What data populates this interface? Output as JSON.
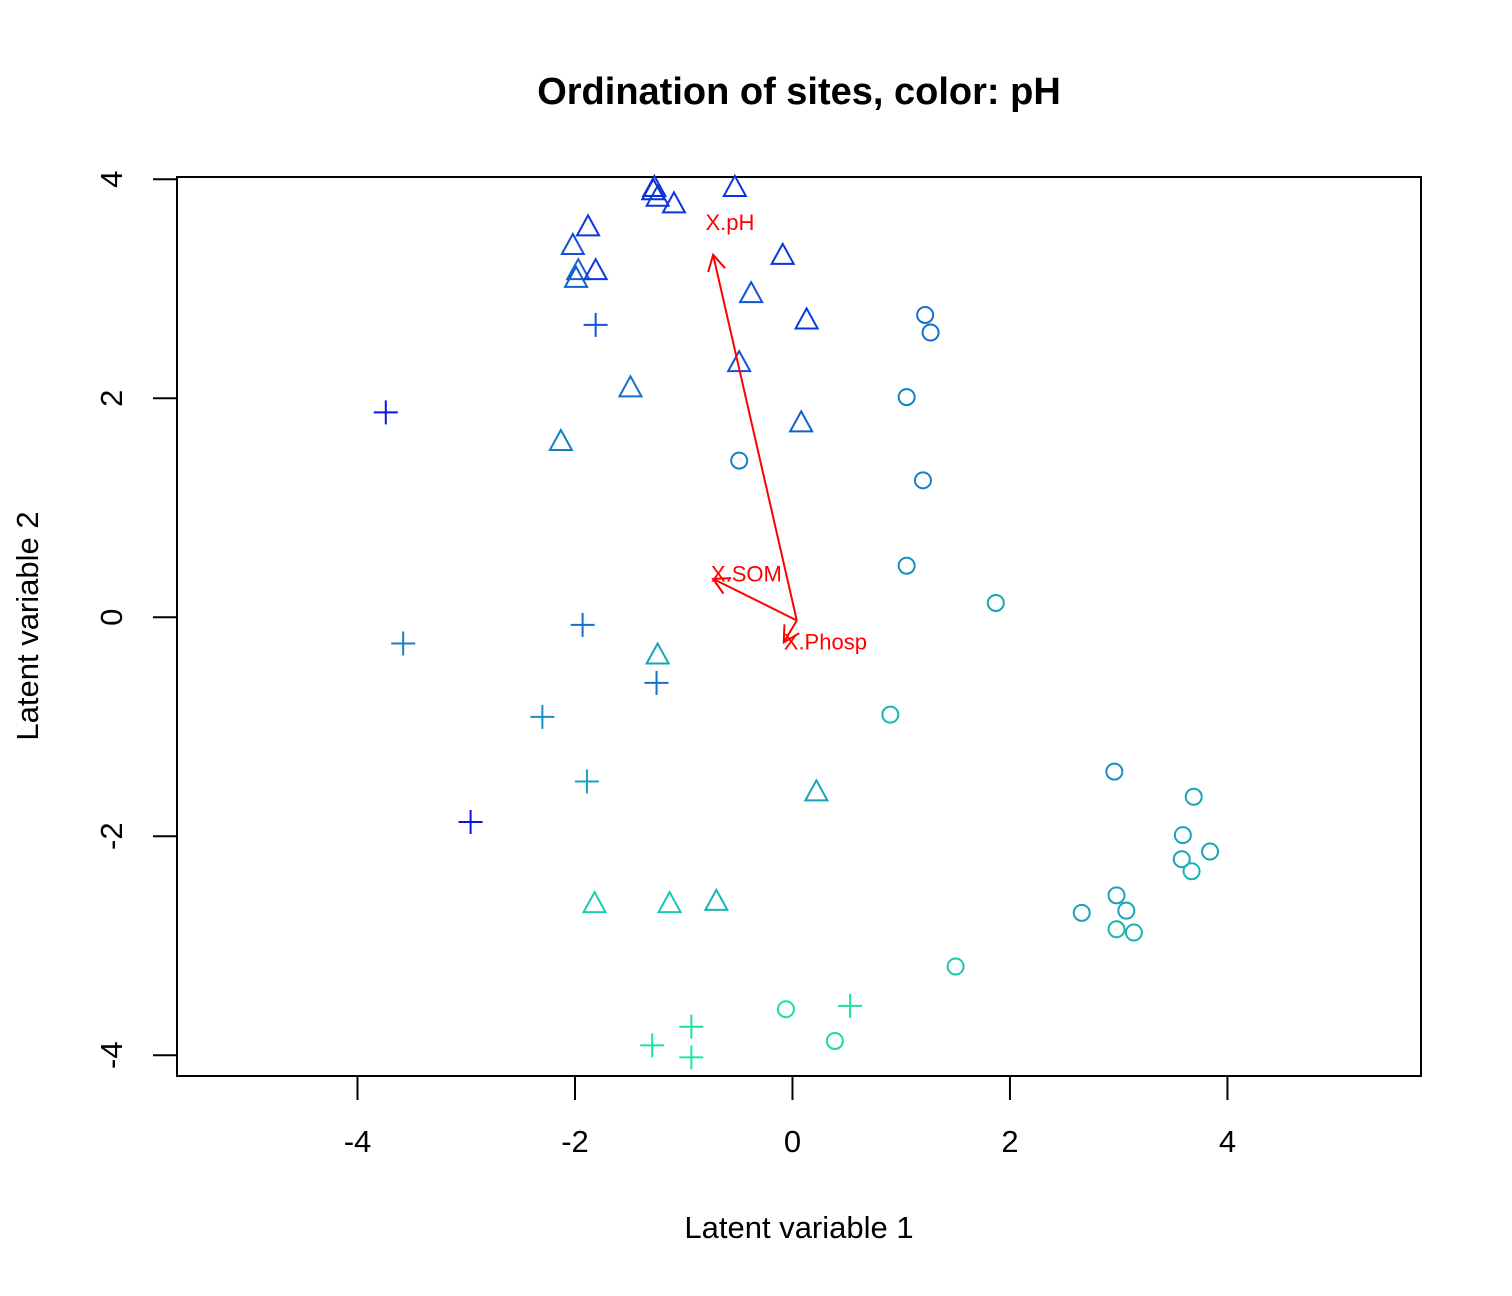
{
  "chart_data": {
    "type": "scatter",
    "title": "Ordination of sites, color: pH",
    "xlabel": "Latent variable 1",
    "ylabel": "Latent variable 2",
    "xlim": [
      -5.66,
      5.78
    ],
    "ylim": [
      -4.19,
      4.02
    ],
    "xticks": [
      -4,
      -2,
      0,
      2,
      4
    ],
    "yticks": [
      -4,
      -2,
      0,
      2,
      4
    ],
    "tick_labels_x": [
      "-4",
      "-2",
      "0",
      "2",
      "4"
    ],
    "tick_labels_y": [
      "-4",
      "-2",
      "0",
      "2",
      "4"
    ],
    "grid": false,
    "legend": "none",
    "points": [
      {
        "x": -3.74,
        "y": 1.87,
        "shape": "plus",
        "color": "#0a14e8"
      },
      {
        "x": -3.58,
        "y": -0.24,
        "shape": "plus",
        "color": "#1480c8"
      },
      {
        "x": -2.96,
        "y": -1.87,
        "shape": "plus",
        "color": "#0a14e8"
      },
      {
        "x": -2.3,
        "y": -0.91,
        "shape": "plus",
        "color": "#1490c4"
      },
      {
        "x": -1.93,
        "y": -0.07,
        "shape": "plus",
        "color": "#1470cc"
      },
      {
        "x": -1.89,
        "y": -1.5,
        "shape": "plus",
        "color": "#18a4b8"
      },
      {
        "x": -1.81,
        "y": 2.67,
        "shape": "plus",
        "color": "#1450d8"
      },
      {
        "x": -1.25,
        "y": -0.6,
        "shape": "plus",
        "color": "#1470cc"
      },
      {
        "x": -1.29,
        "y": -3.91,
        "shape": "plus",
        "color": "#1ae0a4"
      },
      {
        "x": -0.93,
        "y": -3.74,
        "shape": "plus",
        "color": "#1ae0a4"
      },
      {
        "x": -0.93,
        "y": -4.02,
        "shape": "plus",
        "color": "#1ae8a0"
      },
      {
        "x": 0.53,
        "y": -3.55,
        "shape": "plus",
        "color": "#1ae0a4"
      },
      {
        "x": -1.27,
        "y": 3.92,
        "shape": "triangle",
        "color": "#0a30e0"
      },
      {
        "x": -1.28,
        "y": 3.89,
        "shape": "triangle",
        "color": "#0a30e0"
      },
      {
        "x": -1.24,
        "y": 3.83,
        "shape": "triangle",
        "color": "#0a38dc"
      },
      {
        "x": -1.09,
        "y": 3.77,
        "shape": "triangle",
        "color": "#0a38dc"
      },
      {
        "x": -0.53,
        "y": 3.92,
        "shape": "triangle",
        "color": "#0a30e0"
      },
      {
        "x": -1.88,
        "y": 3.56,
        "shape": "triangle",
        "color": "#0a38dc"
      },
      {
        "x": -2.02,
        "y": 3.39,
        "shape": "triangle",
        "color": "#1450d8"
      },
      {
        "x": -1.97,
        "y": 3.16,
        "shape": "triangle",
        "color": "#1460d0"
      },
      {
        "x": -1.99,
        "y": 3.09,
        "shape": "triangle",
        "color": "#1460d0"
      },
      {
        "x": -1.81,
        "y": 3.16,
        "shape": "triangle",
        "color": "#0a38dc"
      },
      {
        "x": -0.09,
        "y": 3.3,
        "shape": "triangle",
        "color": "#0a38dc"
      },
      {
        "x": -0.38,
        "y": 2.95,
        "shape": "triangle",
        "color": "#1450d8"
      },
      {
        "x": 0.13,
        "y": 2.71,
        "shape": "triangle",
        "color": "#0a38dc"
      },
      {
        "x": -0.49,
        "y": 2.32,
        "shape": "triangle",
        "color": "#1450d8"
      },
      {
        "x": -1.49,
        "y": 2.09,
        "shape": "triangle",
        "color": "#1470cc"
      },
      {
        "x": -2.13,
        "y": 1.6,
        "shape": "triangle",
        "color": "#1480c8"
      },
      {
        "x": 0.08,
        "y": 1.77,
        "shape": "triangle",
        "color": "#1460d0"
      },
      {
        "x": -1.24,
        "y": -0.35,
        "shape": "triangle",
        "color": "#18a4b8"
      },
      {
        "x": 0.22,
        "y": -1.6,
        "shape": "triangle",
        "color": "#18a4b8"
      },
      {
        "x": -1.82,
        "y": -2.62,
        "shape": "triangle",
        "color": "#1ad0ac"
      },
      {
        "x": -1.13,
        "y": -2.62,
        "shape": "triangle",
        "color": "#1ac8b0"
      },
      {
        "x": -0.7,
        "y": -2.6,
        "shape": "triangle",
        "color": "#18b4b4"
      },
      {
        "x": 1.22,
        "y": 2.76,
        "shape": "circle",
        "color": "#1470cc"
      },
      {
        "x": 1.27,
        "y": 2.6,
        "shape": "circle",
        "color": "#1470cc"
      },
      {
        "x": 1.05,
        "y": 2.01,
        "shape": "circle",
        "color": "#1480c8"
      },
      {
        "x": -0.49,
        "y": 1.43,
        "shape": "circle",
        "color": "#1480c8"
      },
      {
        "x": 1.2,
        "y": 1.25,
        "shape": "circle",
        "color": "#1480c8"
      },
      {
        "x": 1.05,
        "y": 0.47,
        "shape": "circle",
        "color": "#1490c4"
      },
      {
        "x": 1.87,
        "y": 0.13,
        "shape": "circle",
        "color": "#18a4b8"
      },
      {
        "x": 0.9,
        "y": -0.89,
        "shape": "circle",
        "color": "#18b4b4"
      },
      {
        "x": 2.96,
        "y": -1.41,
        "shape": "circle",
        "color": "#1490c4"
      },
      {
        "x": 3.69,
        "y": -1.64,
        "shape": "circle",
        "color": "#18a4b8"
      },
      {
        "x": 3.59,
        "y": -1.99,
        "shape": "circle",
        "color": "#18a4b8"
      },
      {
        "x": 3.84,
        "y": -2.14,
        "shape": "circle",
        "color": "#18a4b8"
      },
      {
        "x": 3.58,
        "y": -2.21,
        "shape": "circle",
        "color": "#18a4b8"
      },
      {
        "x": 3.67,
        "y": -2.32,
        "shape": "circle",
        "color": "#18b4b4"
      },
      {
        "x": 2.98,
        "y": -2.54,
        "shape": "circle",
        "color": "#18a4b8"
      },
      {
        "x": 3.07,
        "y": -2.68,
        "shape": "circle",
        "color": "#18a4b8"
      },
      {
        "x": 2.66,
        "y": -2.7,
        "shape": "circle",
        "color": "#18a4b8"
      },
      {
        "x": 2.98,
        "y": -2.85,
        "shape": "circle",
        "color": "#18b4b4"
      },
      {
        "x": 3.14,
        "y": -2.88,
        "shape": "circle",
        "color": "#18b4b4"
      },
      {
        "x": 1.5,
        "y": -3.19,
        "shape": "circle",
        "color": "#1ac8b0"
      },
      {
        "x": -0.06,
        "y": -3.58,
        "shape": "circle",
        "color": "#1ae0a4"
      },
      {
        "x": 0.39,
        "y": -3.87,
        "shape": "circle",
        "color": "#1ad8a8"
      }
    ],
    "arrows": [
      {
        "label": "X.pH",
        "x0": 0.04,
        "y0": -0.03,
        "x1": -0.73,
        "y1": 3.31,
        "lx": -0.8,
        "ly": 3.59
      },
      {
        "label": "X.SOM",
        "x0": 0.04,
        "y0": -0.03,
        "x1": -0.73,
        "y1": 0.35,
        "lx": -0.75,
        "ly": 0.38
      },
      {
        "label": "X.Phosp",
        "x0": 0.04,
        "y0": -0.03,
        "x1": -0.08,
        "y1": -0.23,
        "lx": -0.08,
        "ly": -0.24
      }
    ],
    "arrow_color": "#ff0000"
  }
}
